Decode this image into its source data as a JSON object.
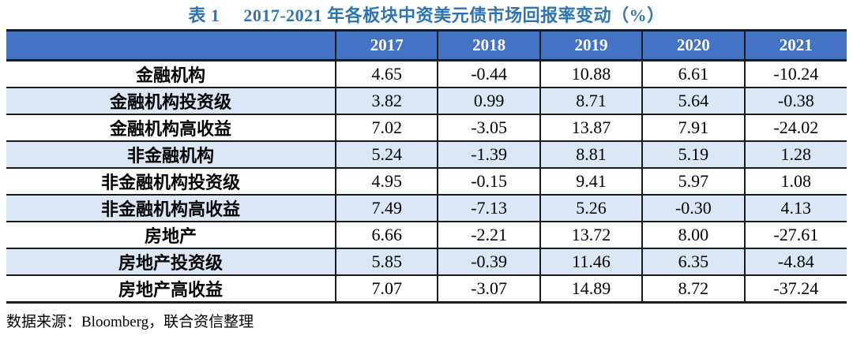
{
  "caption": {
    "label": "表 1",
    "text": "2017-2021 年各板块中资美元债市场回报率变动（%）"
  },
  "table": {
    "year_headers": [
      "2017",
      "2018",
      "2019",
      "2020",
      "2021"
    ],
    "rows": [
      {
        "label": "金融机构",
        "values": [
          "4.65",
          "-0.44",
          "10.88",
          "6.61",
          "-10.24"
        ]
      },
      {
        "label": "金融机构投资级",
        "values": [
          "3.82",
          "0.99",
          "8.71",
          "5.64",
          "-0.38"
        ]
      },
      {
        "label": "金融机构高收益",
        "values": [
          "7.02",
          "-3.05",
          "13.87",
          "7.91",
          "-24.02"
        ]
      },
      {
        "label": "非金融机构",
        "values": [
          "5.24",
          "-1.39",
          "8.81",
          "5.19",
          "1.28"
        ]
      },
      {
        "label": "非金融机构投资级",
        "values": [
          "4.95",
          "-0.15",
          "9.41",
          "5.97",
          "1.08"
        ]
      },
      {
        "label": "非金融机构高收益",
        "values": [
          "7.49",
          "-7.13",
          "5.26",
          "-0.30",
          "4.13"
        ]
      },
      {
        "label": "房地产",
        "values": [
          "6.66",
          "-2.21",
          "13.72",
          "8.00",
          "-27.61"
        ]
      },
      {
        "label": "房地产投资级",
        "values": [
          "5.85",
          "-0.39",
          "11.46",
          "6.35",
          "-4.84"
        ]
      },
      {
        "label": "房地产高收益",
        "values": [
          "7.07",
          "-3.07",
          "14.89",
          "8.72",
          "-37.24"
        ]
      }
    ]
  },
  "source_note": "数据来源：Bloomberg，联合资信整理",
  "colors": {
    "header_bg": "#4472C4",
    "header_text": "#FFFFFF",
    "alt_row_bg": "#DBE7F5",
    "caption_text": "#2E74B5",
    "border": "#1C1C1C"
  },
  "chart_data": {
    "type": "table",
    "title": "表 1　2017-2021 年各板块中资美元债市场回报率变动（%）",
    "categories": [
      "2017",
      "2018",
      "2019",
      "2020",
      "2021"
    ],
    "series": [
      {
        "name": "金融机构",
        "values": [
          4.65,
          -0.44,
          10.88,
          6.61,
          -10.24
        ]
      },
      {
        "name": "金融机构投资级",
        "values": [
          3.82,
          0.99,
          8.71,
          5.64,
          -0.38
        ]
      },
      {
        "name": "金融机构高收益",
        "values": [
          7.02,
          -3.05,
          13.87,
          7.91,
          -24.02
        ]
      },
      {
        "name": "非金融机构",
        "values": [
          5.24,
          -1.39,
          8.81,
          5.19,
          1.28
        ]
      },
      {
        "name": "非金融机构投资级",
        "values": [
          4.95,
          -0.15,
          9.41,
          5.97,
          1.08
        ]
      },
      {
        "name": "非金融机构高收益",
        "values": [
          7.49,
          -7.13,
          5.26,
          -0.3,
          4.13
        ]
      },
      {
        "name": "房地产",
        "values": [
          6.66,
          -2.21,
          13.72,
          8.0,
          -27.61
        ]
      },
      {
        "name": "房地产投资级",
        "values": [
          5.85,
          -0.39,
          11.46,
          6.35,
          -4.84
        ]
      },
      {
        "name": "房地产高收益",
        "values": [
          7.07,
          -3.07,
          14.89,
          8.72,
          -37.24
        ]
      }
    ],
    "source": "数据来源：Bloomberg，联合资信整理",
    "legend_position": "none",
    "unit": "%"
  }
}
